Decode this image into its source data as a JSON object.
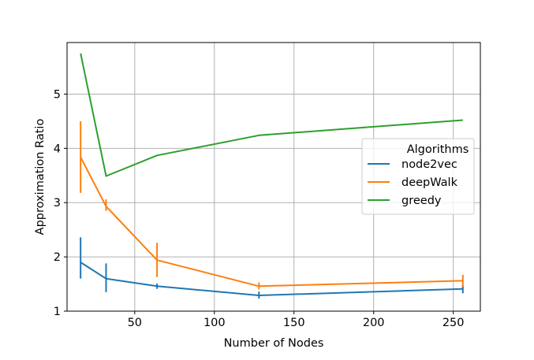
{
  "chart_data": {
    "type": "line",
    "title": "",
    "xlabel": "Number of Nodes",
    "ylabel": "Approximation Ratio",
    "xlim": [
      7.5,
      267
    ],
    "ylim": [
      1.0,
      5.95
    ],
    "xticks": [
      50,
      100,
      150,
      200,
      250
    ],
    "yticks": [
      1,
      2,
      3,
      4,
      5
    ],
    "grid": true,
    "legend": {
      "title": "Algorithms",
      "placement": "right"
    },
    "x": [
      16,
      32,
      64,
      128,
      256
    ],
    "series": [
      {
        "name": "node2vec",
        "color": "#1f77b4",
        "values": [
          1.9,
          1.6,
          1.46,
          1.29,
          1.41
        ],
        "err_low": [
          1.6,
          1.35,
          1.41,
          1.23,
          1.33
        ],
        "err_high": [
          2.36,
          1.88,
          1.51,
          1.36,
          1.48
        ]
      },
      {
        "name": "deepWalk",
        "color": "#ff7f0e",
        "values": [
          3.84,
          2.93,
          1.94,
          1.46,
          1.56
        ],
        "err_low": [
          3.18,
          2.85,
          1.63,
          1.4,
          1.45
        ],
        "err_high": [
          4.5,
          3.06,
          2.26,
          1.53,
          1.67
        ]
      },
      {
        "name": "greedy",
        "color": "#2ca02c",
        "values": [
          5.75,
          3.49,
          3.87,
          4.24,
          4.52
        ],
        "err_low": [
          5.75,
          3.49,
          3.87,
          4.24,
          4.52
        ],
        "err_high": [
          5.75,
          3.49,
          3.87,
          4.24,
          4.52
        ]
      }
    ]
  }
}
